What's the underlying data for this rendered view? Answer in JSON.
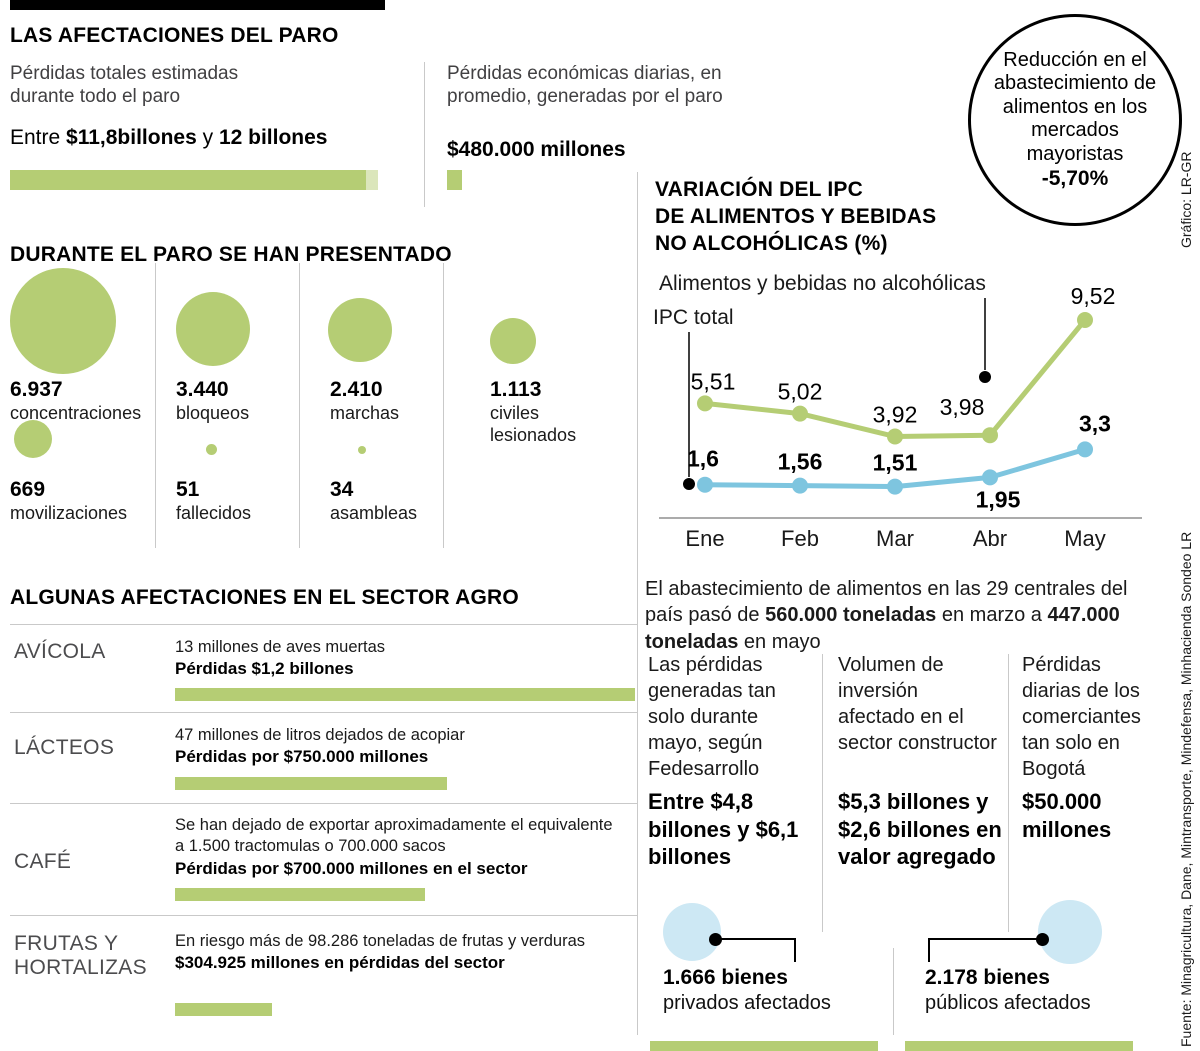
{
  "colors": {
    "green": "#b5cd74",
    "green_tip": "#dbe6bb",
    "blue": "#7ec5df",
    "light_blue": "#cde8f4",
    "black": "#000000"
  },
  "header": {
    "title": "LAS AFECTACIONES DEL PARO",
    "total": {
      "desc": "Pérdidas totales estimadas durante todo el paro",
      "p1": "Entre ",
      "b1": "$11,8billones",
      "p2": " y ",
      "b2": "12 billones"
    },
    "daily": {
      "desc": "Pérdidas económicas diarias, en promedio, generadas por el paro",
      "value": "$480.000 millones"
    },
    "badge": {
      "text": "Reducción en el abastecimiento de alimentos en los mercados mayoristas",
      "value": "-5,70%"
    }
  },
  "protests": {
    "title": "DURANTE EL PARO SE HAN PRESENTADO",
    "items": [
      {
        "value": "6.937",
        "label": "concentraciones"
      },
      {
        "value": "3.440",
        "label": "bloqueos"
      },
      {
        "value": "2.410",
        "label": "marchas"
      },
      {
        "value": "1.113",
        "label": "civiles lesionados"
      },
      {
        "value": "669",
        "label": "movilizaciones"
      },
      {
        "value": "51",
        "label": "fallecidos"
      },
      {
        "value": "34",
        "label": "asambleas"
      }
    ]
  },
  "agro": {
    "title": "ALGUNAS AFECTACIONES EN EL SECTOR AGRO",
    "rows": [
      {
        "sector": "AVÍCOLA",
        "desc": "13 millones de aves muertas",
        "loss": "Pérdidas $1,2 billones"
      },
      {
        "sector": "LÁCTEOS",
        "desc": "47 millones de litros dejados de acopiar",
        "loss": "Pérdidas por $750.000 millones"
      },
      {
        "sector": "CAFÉ",
        "desc": "Se han dejado de exportar aproximadamente el equivalente a 1.500 tractomulas o 700.000 sacos",
        "loss": "Pérdidas por $700.000 millones en el sector"
      },
      {
        "sector": "FRUTAS Y HORTALIZAS",
        "desc": "En riesgo más de 98.286 toneladas de frutas y verduras",
        "loss": "$304.925 millones en pérdidas del sector"
      }
    ]
  },
  "chart_data": {
    "type": "line",
    "title": "VARIACIÓN DEL IPC DE ALIMENTOS Y BEBIDAS NO ALCOHÓLICAS (%)",
    "title_lines": [
      "VARIACIÓN DEL IPC",
      "DE ALIMENTOS Y BEBIDAS",
      "NO ALCOHÓLICAS (%)"
    ],
    "categories": [
      "Ene",
      "Feb",
      "Mar",
      "Abr",
      "May"
    ],
    "series": [
      {
        "name": "Alimentos y bebidas no alcohólicas",
        "color": "#b5cd74",
        "values": [
          5.51,
          5.02,
          3.92,
          3.98,
          9.52
        ],
        "labels": [
          "5,51",
          "5,02",
          "3,92",
          "3,98",
          "9,52"
        ],
        "bold_labels": false
      },
      {
        "name": "IPC total",
        "color": "#7ec5df",
        "values": [
          1.6,
          1.56,
          1.51,
          1.95,
          3.3
        ],
        "labels": [
          "1,6",
          "1,56",
          "1,51",
          "1,95",
          "3,3"
        ],
        "bold_labels": true
      }
    ],
    "ylim": [
      0,
      10.5
    ],
    "grid": false,
    "legend_position": "top-left"
  },
  "supply": {
    "p1": "El abastecimiento de alimentos en las 29 centrales del país pasó de ",
    "b1": "560.000 toneladas",
    "p2": " en marzo a ",
    "b2": "447.000 toneladas",
    "p3": " en mayo"
  },
  "impact_columns": [
    {
      "desc": "Las pérdidas generadas tan solo durante mayo, según Fedesarrollo",
      "value": "Entre $4,8 billones y $6,1 billones"
    },
    {
      "desc": "Volumen de inversión afectado en el sector constructor",
      "value": "$5,3 billones y $2,6 billones en valor agregado"
    },
    {
      "desc": "Pérdidas diarias de los comerciantes tan solo en Bogotá",
      "value": "$50.000 millones"
    }
  ],
  "assets": {
    "private": {
      "value": "1.666 bienes",
      "label": "privados afectados"
    },
    "public": {
      "value": "2.178 bienes",
      "label": "públicos afectados"
    }
  },
  "credits": {
    "source": "Fuente: Minagricultura, Dane, Mintransporte, Mindefensa, Minhacienda Sondeo LR",
    "graphic": "Gráfico: LR-GR"
  }
}
